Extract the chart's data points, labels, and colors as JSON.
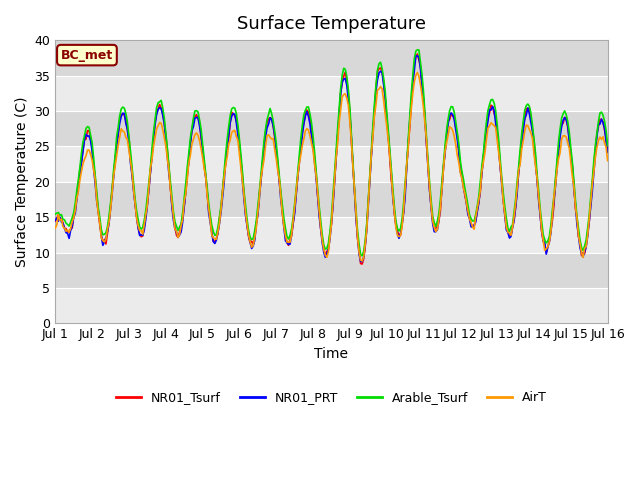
{
  "title": "Surface Temperature",
  "ylabel": "Surface Temperature (C)",
  "xlabel": "Time",
  "ylim": [
    0,
    40
  ],
  "xlim": [
    0,
    360
  ],
  "bg_color_light": "#ebebeb",
  "bg_color_dark": "#d8d8d8",
  "fig_color": "#ffffff",
  "annotation_text": "BC_met",
  "annotation_facecolor": "#ffffcc",
  "annotation_edgecolor": "#8b0000",
  "annotation_textcolor": "#8b0000",
  "series": [
    {
      "label": "NR01_Tsurf",
      "color": "#ff0000"
    },
    {
      "label": "NR01_PRT",
      "color": "#0000ff"
    },
    {
      "label": "Arable_Tsurf",
      "color": "#00dd00"
    },
    {
      "label": "AirT",
      "color": "#ff9900"
    }
  ],
  "x_tick_positions": [
    0,
    24,
    48,
    72,
    96,
    120,
    144,
    168,
    192,
    216,
    240,
    264,
    288,
    312,
    336,
    360
  ],
  "x_tick_labels": [
    "Jul 1",
    "Jul 2",
    "Jul 3",
    "Jul 4",
    "Jul 5",
    "Jul 6",
    "Jul 7",
    "Jul 8",
    "Jul 9",
    "Jul 10",
    "Jul 11",
    "Jul 12",
    "Jul 13",
    "Jul 14",
    "Jul 15",
    "Jul 16"
  ],
  "y_ticks": [
    0,
    5,
    10,
    15,
    20,
    25,
    30,
    35,
    40
  ],
  "grid_color": "#ffffff",
  "linewidth": 1.2,
  "tmin_days": [
    0,
    1,
    2,
    3,
    4,
    5,
    6,
    7,
    7.5,
    8,
    8.5,
    9,
    10,
    11,
    12,
    13,
    14,
    15
  ],
  "tmin_vals": [
    14,
    11,
    12.5,
    12.5,
    12,
    11,
    11,
    12,
    8.5,
    7,
    9.5,
    12,
    12.5,
    14,
    13,
    11,
    9.5,
    10
  ],
  "tmax_days": [
    0,
    1,
    2,
    3,
    4,
    5,
    6,
    7,
    7.5,
    8,
    8.5,
    9,
    9.5,
    10,
    10.5,
    11,
    12,
    13,
    14,
    15
  ],
  "tmax_vals": [
    15,
    29,
    30,
    31,
    29,
    30,
    29,
    30,
    31,
    37,
    38,
    35,
    38,
    38,
    37,
    25,
    32,
    30,
    29,
    29
  ],
  "peak_hour": 14
}
